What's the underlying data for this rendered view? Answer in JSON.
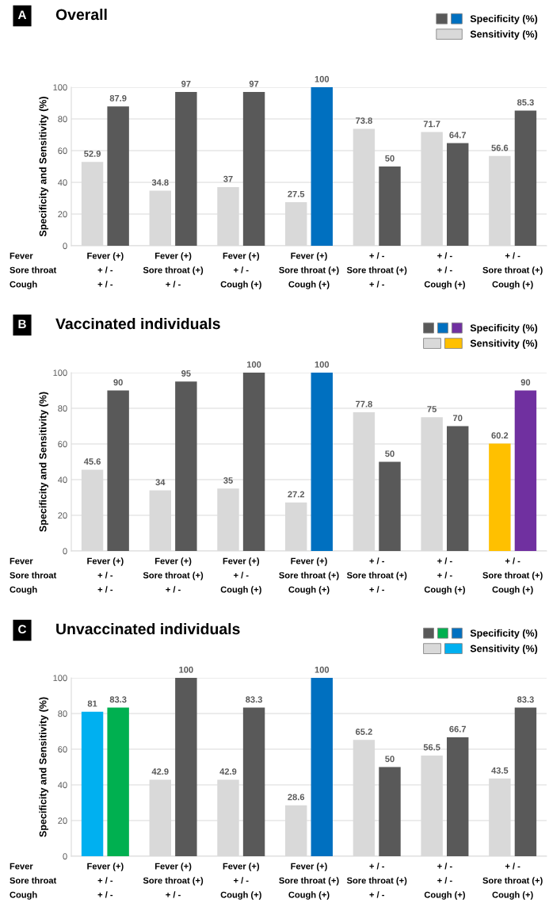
{
  "chart_data": [
    {
      "type": "bar",
      "title": "Overall",
      "ylabel": "Specificity and Sensitivity (%)",
      "annotations": [
        "A",
        "Fever\nSore throat\nCough"
      ],
      "categories": [
        "Fever (+)\n+ / -\n+ / -",
        "Fever (+)\nSore throat (+)\n+ / -",
        "Fever (+)\n+ / -\nCough (+)",
        "Fever (+)\nSore throat (+)\nCough (+)",
        "+ / -\nSore throat (+)\n+ / -",
        "+ / -\n+ / -\nCough (+)",
        "+ / -\nSore throat (+)\nCough (+)"
      ],
      "series": [
        {
          "name": "Sensitivity (%)",
          "color": "#d9d9d9",
          "colors": [
            "#d9d9d9",
            "#d9d9d9",
            "#d9d9d9",
            "#d9d9d9",
            "#d9d9d9",
            "#d9d9d9",
            "#d9d9d9"
          ],
          "values": [
            52.9,
            34.8,
            37,
            27.5,
            73.8,
            71.7,
            56.6
          ]
        },
        {
          "name": "Specificity (%)",
          "color": "#595959",
          "colors": [
            "#595959",
            "#595959",
            "#595959",
            "#0070c0",
            "#595959",
            "#595959",
            "#595959"
          ],
          "values": [
            87.9,
            97,
            97,
            100,
            50,
            64.7,
            85.3
          ]
        }
      ],
      "ylim": [
        0,
        100
      ],
      "yticks": [
        0,
        20,
        40,
        60,
        80,
        100
      ],
      "grid": "y",
      "legend": "top right",
      "data_labels": true
    },
    {
      "type": "bar",
      "title": "Vaccinated individuals",
      "ylabel": "Specificity and Sensitivity (%)",
      "annotations": [
        "B",
        "Fever\nSore throat\nCough"
      ],
      "categories": [
        "Fever (+)\n+ / -\n+ / -",
        "Fever (+)\nSore throat (+)\n+ / -",
        "Fever (+)\n+ / -\nCough (+)",
        "Fever (+)\nSore throat (+)\nCough (+)",
        "+ / -\nSore throat (+)\n+ / -",
        "+ / -\n+ / -\nCough (+)",
        "+ / -\nSore throat (+)\nCough (+)"
      ],
      "series": [
        {
          "name": "Sensitivity (%)",
          "color": "#d9d9d9",
          "colors": [
            "#d9d9d9",
            "#d9d9d9",
            "#d9d9d9",
            "#d9d9d9",
            "#d9d9d9",
            "#d9d9d9",
            "#ffc000"
          ],
          "values": [
            45.6,
            34,
            35,
            27.2,
            77.8,
            75,
            60.2
          ]
        },
        {
          "name": "Specificity (%)",
          "color": "#595959",
          "colors": [
            "#595959",
            "#595959",
            "#595959",
            "#0070c0",
            "#595959",
            "#595959",
            "#7030a0"
          ],
          "values": [
            90,
            95,
            100,
            100,
            50,
            70,
            90
          ]
        }
      ],
      "ylim": [
        0,
        100
      ],
      "yticks": [
        0,
        20,
        40,
        60,
        80,
        100
      ],
      "grid": "y",
      "legend": "top right",
      "data_labels": true
    },
    {
      "type": "bar",
      "title": "Unvaccinated individuals",
      "ylabel": "Specificity and Sensitivity (%)",
      "annotations": [
        "C",
        "Fever\nSore throat\nCough"
      ],
      "categories": [
        "Fever (+)\n+ / -\n+ / -",
        "Fever (+)\nSore throat (+)\n+ / -",
        "Fever (+)\n+ / -\nCough (+)",
        "Fever (+)\nSore throat (+)\nCough (+)",
        "+ / -\nSore throat (+)\n+ / -",
        "+ / -\n+ / -\nCough (+)",
        "+ / -\nSore throat (+)\nCough (+)"
      ],
      "series": [
        {
          "name": "Sensitivity (%)",
          "color": "#d9d9d9",
          "colors": [
            "#00b0f0",
            "#d9d9d9",
            "#d9d9d9",
            "#d9d9d9",
            "#d9d9d9",
            "#d9d9d9",
            "#d9d9d9"
          ],
          "values": [
            81,
            42.9,
            42.9,
            28.6,
            65.2,
            56.5,
            43.5
          ]
        },
        {
          "name": "Specificity (%)",
          "color": "#595959",
          "colors": [
            "#00b050",
            "#595959",
            "#595959",
            "#0070c0",
            "#595959",
            "#595959",
            "#595959"
          ],
          "values": [
            83.3,
            100,
            83.3,
            100,
            50,
            66.7,
            83.3
          ]
        }
      ],
      "ylim": [
        0,
        100
      ],
      "yticks": [
        0,
        20,
        40,
        60,
        80,
        100
      ],
      "grid": "y",
      "legend": "top right",
      "data_labels": true
    }
  ]
}
